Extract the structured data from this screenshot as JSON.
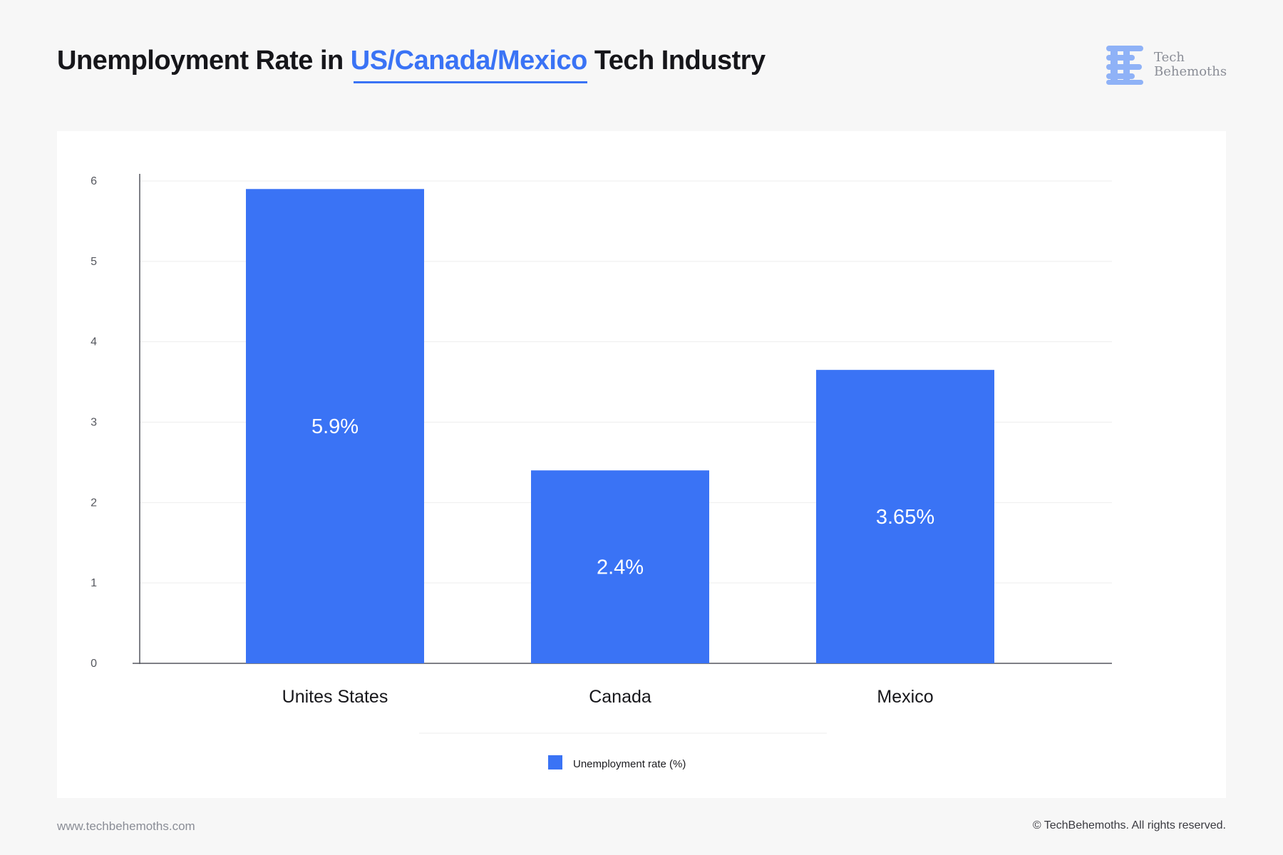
{
  "header": {
    "title_prefix": "Unemployment Rate in ",
    "title_highlight": "US/Canada/Mexico",
    "title_suffix": " Tech Industry",
    "accent_color": "#3a73f5"
  },
  "brand": {
    "logo_icon": "tech-behemoths-logo-icon",
    "line1": "Tech",
    "line2": "Behemoths",
    "logo_color": "#8fb2f7"
  },
  "chart_data": {
    "type": "bar",
    "categories": [
      "Unites States",
      "Canada",
      "Mexico"
    ],
    "series": [
      {
        "name": "Unemployment rate (%)",
        "values": [
          5.9,
          2.4,
          3.65
        ],
        "labels": [
          "5.9%",
          "2.4%",
          "3.65%"
        ],
        "color": "#3a73f5"
      }
    ],
    "yticks": [
      "0",
      "1",
      "2",
      "3",
      "4",
      "5",
      "6"
    ],
    "ylim": [
      0,
      6
    ],
    "grid": true,
    "legend_position": "bottom-center"
  },
  "footer": {
    "website": "www.techbehemoths.com",
    "copyright": "© TechBehemoths. All rights reserved."
  }
}
